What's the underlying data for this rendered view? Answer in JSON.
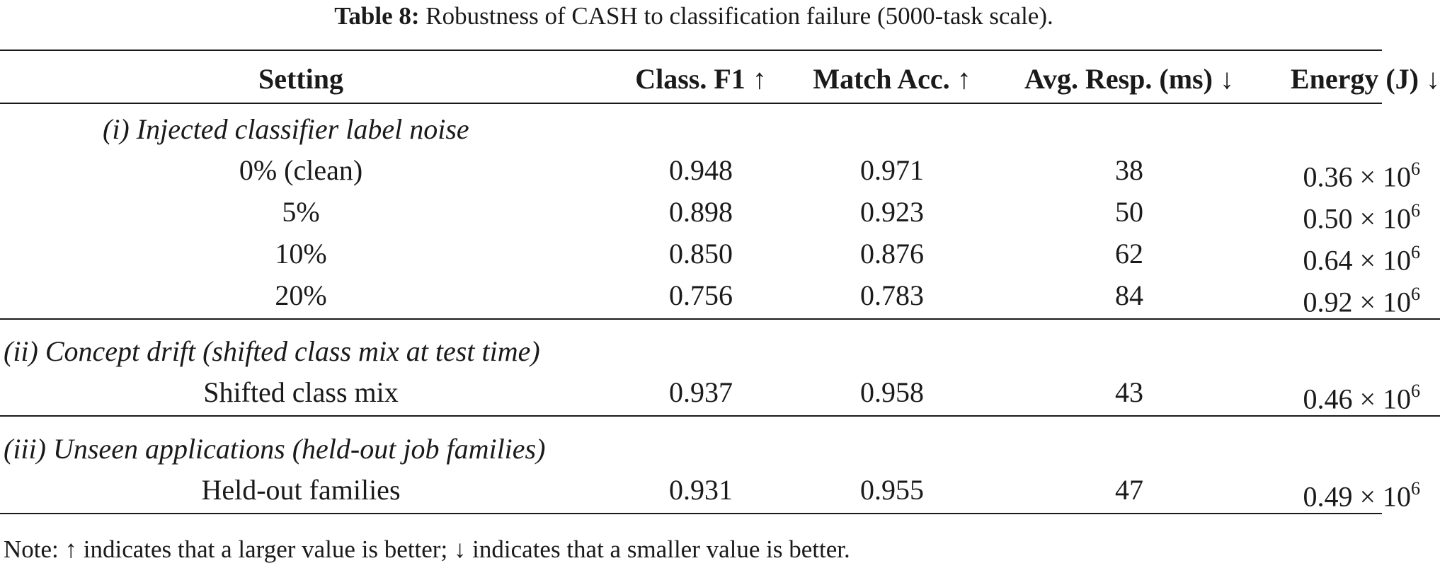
{
  "caption": {
    "label": "Table 8:",
    "text": "Robustness of CASH to classification failure (5000-task scale)."
  },
  "header": {
    "setting": "Setting",
    "f1": "Class. F1 ↑",
    "acc": "Match Acc. ↑",
    "resp": "Avg. Resp. (ms) ↓",
    "energy": "Energy (J) ↓"
  },
  "sections": {
    "s1": "(i) Injected classifier label noise",
    "s2": "(ii) Concept drift (shifted class mix at test time)",
    "s3": "(iii) Unseen applications (held-out job families)"
  },
  "rows": [
    {
      "setting": "0% (clean)",
      "f1": "0.948",
      "acc": "0.971",
      "resp": "38",
      "energy_mant": "0.36",
      "energy_times": "× 10",
      "energy_exp": "6"
    },
    {
      "setting": "5%",
      "f1": "0.898",
      "acc": "0.923",
      "resp": "50",
      "energy_mant": "0.50",
      "energy_times": "× 10",
      "energy_exp": "6"
    },
    {
      "setting": "10%",
      "f1": "0.850",
      "acc": "0.876",
      "resp": "62",
      "energy_mant": "0.64",
      "energy_times": "× 10",
      "energy_exp": "6"
    },
    {
      "setting": "20%",
      "f1": "0.756",
      "acc": "0.783",
      "resp": "84",
      "energy_mant": "0.92",
      "energy_times": "× 10",
      "energy_exp": "6"
    },
    {
      "setting": "Shifted class mix",
      "f1": "0.937",
      "acc": "0.958",
      "resp": "43",
      "energy_mant": "0.46",
      "energy_times": "× 10",
      "energy_exp": "6"
    },
    {
      "setting": "Held-out families",
      "f1": "0.931",
      "acc": "0.955",
      "resp": "47",
      "energy_mant": "0.49",
      "energy_times": "× 10",
      "energy_exp": "6"
    }
  ],
  "note": "Note: ↑ indicates that a larger value is better; ↓ indicates that a smaller value is better."
}
